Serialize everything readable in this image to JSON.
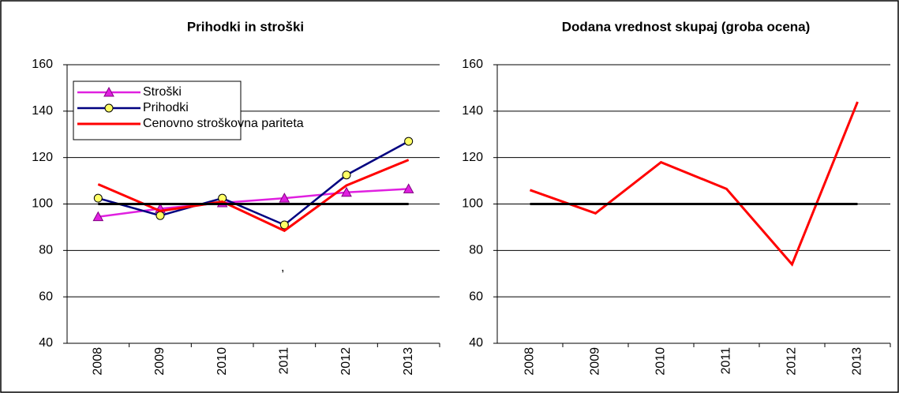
{
  "chart_data": [
    {
      "type": "line",
      "title": "Prihodki in stroški",
      "categories": [
        "2008",
        "2009",
        "2010",
        "2011",
        "2012",
        "2013"
      ],
      "series": [
        {
          "name": "Stroški",
          "color": "#e020e0",
          "marker": "triangle",
          "values": [
            94.5,
            98,
            100.5,
            102.5,
            105,
            106.5
          ]
        },
        {
          "name": "Prihodki",
          "color": "#000080",
          "marker": "circle",
          "values": [
            102.5,
            95,
            102.5,
            91,
            112.5,
            127
          ]
        },
        {
          "name": "Cenovno stroškovna pariteta",
          "color": "#ff0000",
          "values": [
            108.5,
            97,
            101,
            88.5,
            108,
            119
          ]
        },
        {
          "color": "#000000",
          "values": [
            100,
            100,
            100,
            100,
            100,
            100
          ]
        }
      ],
      "ylim": [
        40,
        160
      ],
      "yticks": [
        40,
        60,
        80,
        100,
        120,
        140,
        160
      ],
      "grid": true,
      "legend": "upper left",
      "annotation": ","
    },
    {
      "type": "line",
      "title": "Dodana vrednost skupaj (groba ocena)",
      "categories": [
        "2008",
        "2009",
        "2010",
        "2011",
        "2012",
        "2013"
      ],
      "series": [
        {
          "color": "#ff0000",
          "values": [
            106,
            96,
            118,
            106.5,
            74,
            144
          ]
        },
        {
          "color": "#000000",
          "values": [
            100,
            100,
            100,
            100,
            100,
            100
          ]
        }
      ],
      "ylim": [
        40,
        160
      ],
      "yticks": [
        40,
        60,
        80,
        100,
        120,
        140,
        160
      ],
      "grid": true
    }
  ]
}
